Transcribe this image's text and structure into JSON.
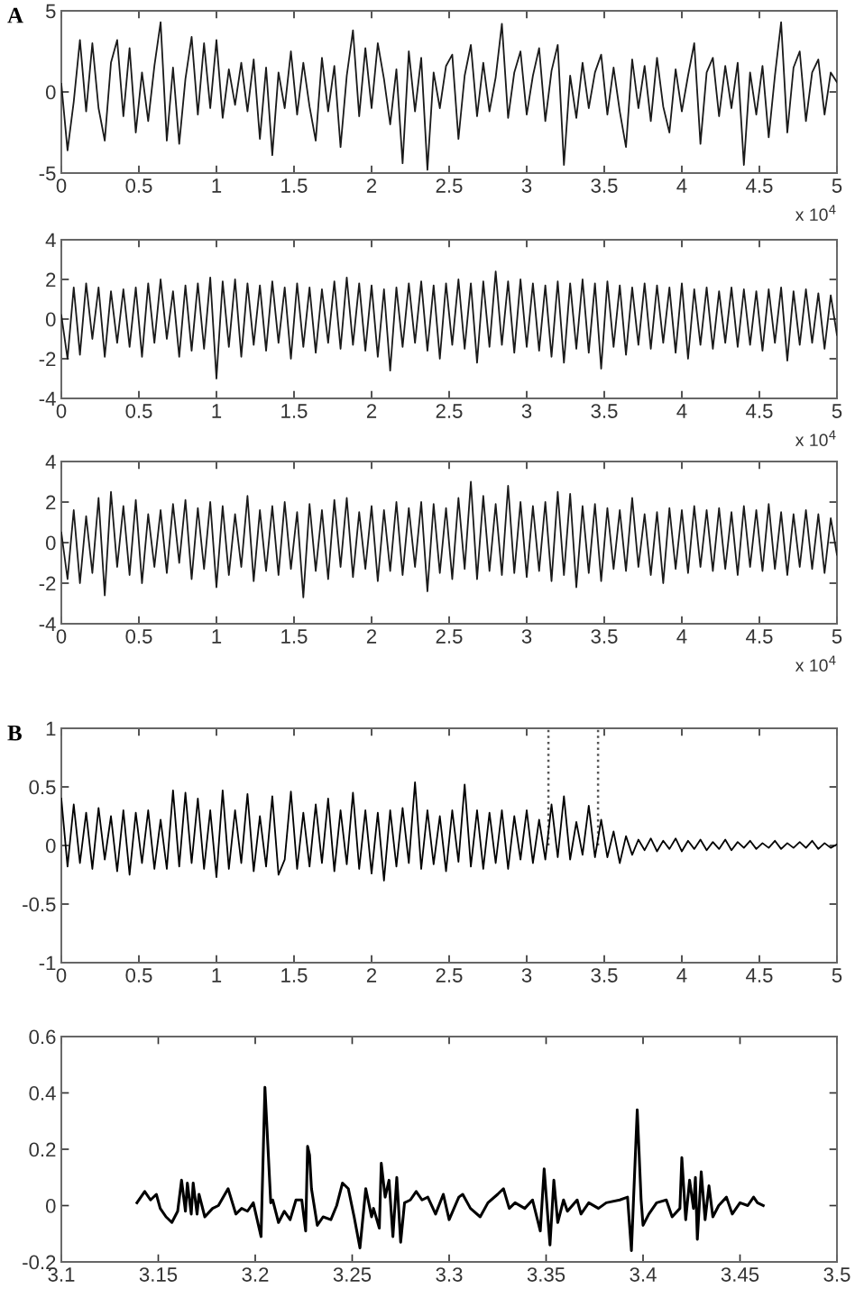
{
  "chart_data": [
    {
      "type": "line",
      "title": "A",
      "xlim": [
        0,
        5
      ],
      "ylim": [
        -5,
        5
      ],
      "xticks": [
        0,
        0.5,
        1,
        1.5,
        2,
        2.5,
        3,
        3.5,
        4,
        4.5,
        5
      ],
      "yticks": [
        -5,
        0,
        5
      ],
      "annotations": [
        "x 10$^{4}$"
      ],
      "x": [
        0,
        0.04,
        0.08,
        0.12,
        0.16,
        0.2,
        0.24,
        0.28,
        0.32,
        0.36,
        0.4,
        0.44,
        0.48,
        0.52,
        0.56,
        0.6,
        0.64,
        0.68,
        0.72,
        0.76,
        0.8,
        0.84,
        0.88,
        0.92,
        0.96,
        1,
        1.04,
        1.08,
        1.12,
        1.16,
        1.2,
        1.24,
        1.28,
        1.32,
        1.36,
        1.4,
        1.44,
        1.48,
        1.52,
        1.56,
        1.6,
        1.64,
        1.68,
        1.72,
        1.76,
        1.8,
        1.84,
        1.88,
        1.92,
        1.96,
        2,
        2.04,
        2.08,
        2.12,
        2.16,
        2.2,
        2.24,
        2.28,
        2.32,
        2.36,
        2.4,
        2.44,
        2.48,
        2.52,
        2.56,
        2.6,
        2.64,
        2.68,
        2.72,
        2.76,
        2.8,
        2.84,
        2.88,
        2.92,
        2.96,
        3,
        3.04,
        3.08,
        3.12,
        3.16,
        3.2,
        3.24,
        3.28,
        3.32,
        3.36,
        3.4,
        3.44,
        3.48,
        3.52,
        3.56,
        3.6,
        3.64,
        3.68,
        3.72,
        3.76,
        3.8,
        3.84,
        3.88,
        3.92,
        3.96,
        4,
        4.04,
        4.08,
        4.12,
        4.16,
        4.2,
        4.24,
        4.28,
        4.32,
        4.36,
        4.4,
        4.44,
        4.48,
        4.52,
        4.56,
        4.6,
        4.64,
        4.68,
        4.72,
        4.76,
        4.8,
        4.84,
        4.88,
        4.92,
        4.96,
        5
      ],
      "series": [
        {
          "color": "#1a1a1a",
          "values": [
            0.5,
            -3.6,
            -0.6,
            3.2,
            -1.2,
            3.0,
            -1.0,
            -3.0,
            1.8,
            3.2,
            -1.5,
            2.7,
            -2.5,
            1.2,
            -1.8,
            1.6,
            4.3,
            -3.0,
            1.5,
            -3.2,
            0.8,
            3.4,
            -1.4,
            3.0,
            -1.0,
            3.2,
            -1.6,
            1.4,
            -0.8,
            1.8,
            -1.2,
            2.0,
            -2.9,
            1.5,
            -3.9,
            1.2,
            -1.0,
            2.5,
            -1.4,
            1.8,
            -0.9,
            -3.0,
            2.1,
            -1.2,
            1.6,
            -3.4,
            1.0,
            3.8,
            -1.5,
            2.7,
            -1.0,
            3.0,
            0.8,
            -2.0,
            1.4,
            -4.4,
            2.5,
            -1.2,
            2.1,
            -4.8,
            1.2,
            -1.0,
            1.6,
            2.3,
            -2.9,
            1.0,
            2.9,
            -1.5,
            1.8,
            -1.2,
            0.9,
            4.2,
            -1.6,
            1.2,
            2.5,
            -1.4,
            1.0,
            2.7,
            -1.8,
            1.3,
            2.9,
            -4.5,
            1.0,
            -1.6,
            1.8,
            -1.0,
            1.2,
            2.3,
            -1.4,
            1.5,
            -1.2,
            -3.4,
            2.0,
            -1.0,
            1.6,
            -1.8,
            2.1,
            -0.9,
            -2.5,
            1.4,
            -1.2,
            1.0,
            3.0,
            -3.2,
            1.2,
            2.1,
            -1.5,
            1.6,
            -1.0,
            1.8,
            -4.5,
            1.2,
            -1.4,
            1.6,
            -2.8,
            1.0,
            4.3,
            -2.5,
            1.5,
            2.5,
            -1.8,
            1.2,
            2.0,
            -1.4,
            1.2,
            0.6
          ]
        }
      ]
    },
    {
      "type": "line",
      "xlim": [
        0,
        5
      ],
      "ylim": [
        -4,
        4
      ],
      "xticks": [
        0,
        0.5,
        1,
        1.5,
        2,
        2.5,
        3,
        3.5,
        4,
        4.5,
        5
      ],
      "yticks": [
        -4,
        -2,
        0,
        2,
        4
      ],
      "annotations": [
        "x 10$^{4}$"
      ],
      "x": [
        0,
        0.04,
        0.08,
        0.12,
        0.16,
        0.2,
        0.24,
        0.28,
        0.32,
        0.36,
        0.4,
        0.44,
        0.48,
        0.52,
        0.56,
        0.6,
        0.64,
        0.68,
        0.72,
        0.76,
        0.8,
        0.84,
        0.88,
        0.92,
        0.96,
        1,
        1.04,
        1.08,
        1.12,
        1.16,
        1.2,
        1.24,
        1.28,
        1.32,
        1.36,
        1.4,
        1.44,
        1.48,
        1.52,
        1.56,
        1.6,
        1.64,
        1.68,
        1.72,
        1.76,
        1.8,
        1.84,
        1.88,
        1.92,
        1.96,
        2,
        2.04,
        2.08,
        2.12,
        2.16,
        2.2,
        2.24,
        2.28,
        2.32,
        2.36,
        2.4,
        2.44,
        2.48,
        2.52,
        2.56,
        2.6,
        2.64,
        2.68,
        2.72,
        2.76,
        2.8,
        2.84,
        2.88,
        2.92,
        2.96,
        3,
        3.04,
        3.08,
        3.12,
        3.16,
        3.2,
        3.24,
        3.28,
        3.32,
        3.36,
        3.4,
        3.44,
        3.48,
        3.52,
        3.56,
        3.6,
        3.64,
        3.68,
        3.72,
        3.76,
        3.8,
        3.84,
        3.88,
        3.92,
        3.96,
        4,
        4.04,
        4.08,
        4.12,
        4.16,
        4.2,
        4.24,
        4.28,
        4.32,
        4.36,
        4.4,
        4.44,
        4.48,
        4.52,
        4.56,
        4.6,
        4.64,
        4.68,
        4.72,
        4.76,
        4.8,
        4.84,
        4.88,
        4.92,
        4.96,
        5
      ],
      "series": [
        {
          "color": "#1a1a1a",
          "values": [
            0.2,
            -2.0,
            1.6,
            -1.8,
            1.8,
            -1.0,
            1.6,
            -1.9,
            1.4,
            -1.2,
            1.5,
            -1.4,
            1.6,
            -1.9,
            1.8,
            -1.2,
            2.0,
            -1.0,
            1.4,
            -1.9,
            1.7,
            -1.6,
            1.8,
            -1.5,
            2.1,
            -3.0,
            1.9,
            -1.4,
            2.0,
            -1.9,
            1.8,
            -1.3,
            1.7,
            -1.6,
            1.9,
            -1.2,
            1.6,
            -2.0,
            1.8,
            -1.4,
            1.6,
            -1.7,
            1.5,
            -1.2,
            1.9,
            -1.5,
            2.1,
            -1.3,
            1.8,
            -1.6,
            1.7,
            -1.9,
            1.5,
            -2.6,
            1.6,
            -1.4,
            1.8,
            -1.2,
            1.9,
            -1.6,
            1.7,
            -2.0,
            1.8,
            -1.3,
            2.0,
            -1.5,
            1.8,
            -2.2,
            1.9,
            -1.4,
            2.4,
            -1.3,
            1.9,
            -1.7,
            2.0,
            -1.4,
            1.8,
            -1.6,
            1.7,
            -1.9,
            1.9,
            -2.2,
            1.8,
            -1.5,
            2.0,
            -1.7,
            1.8,
            -2.5,
            1.9,
            -1.4,
            1.7,
            -1.8,
            1.6,
            -1.3,
            1.8,
            -1.5,
            1.7,
            -1.2,
            1.6,
            -1.7,
            1.8,
            -2.0,
            1.5,
            -1.3,
            1.6,
            -1.5,
            1.4,
            -1.2,
            1.6,
            -1.4,
            1.5,
            -1.3,
            1.4,
            -1.6,
            1.5,
            -1.2,
            1.6,
            -2.1,
            1.4,
            -1.3,
            1.5,
            -1.2,
            1.3,
            -1.5,
            1.2,
            -0.8
          ]
        }
      ]
    },
    {
      "type": "line",
      "xlim": [
        0,
        5
      ],
      "ylim": [
        -4,
        4
      ],
      "xticks": [
        0,
        0.5,
        1,
        1.5,
        2,
        2.5,
        3,
        3.5,
        4,
        4.5,
        5
      ],
      "yticks": [
        -4,
        -2,
        0,
        2,
        4
      ],
      "annotations": [
        "x 10$^{4}$"
      ],
      "x": [
        0,
        0.04,
        0.08,
        0.12,
        0.16,
        0.2,
        0.24,
        0.28,
        0.32,
        0.36,
        0.4,
        0.44,
        0.48,
        0.52,
        0.56,
        0.6,
        0.64,
        0.68,
        0.72,
        0.76,
        0.8,
        0.84,
        0.88,
        0.92,
        0.96,
        1,
        1.04,
        1.08,
        1.12,
        1.16,
        1.2,
        1.24,
        1.28,
        1.32,
        1.36,
        1.4,
        1.44,
        1.48,
        1.52,
        1.56,
        1.6,
        1.64,
        1.68,
        1.72,
        1.76,
        1.8,
        1.84,
        1.88,
        1.92,
        1.96,
        2,
        2.04,
        2.08,
        2.12,
        2.16,
        2.2,
        2.24,
        2.28,
        2.32,
        2.36,
        2.4,
        2.44,
        2.48,
        2.52,
        2.56,
        2.6,
        2.64,
        2.68,
        2.72,
        2.76,
        2.8,
        2.84,
        2.88,
        2.92,
        2.96,
        3,
        3.04,
        3.08,
        3.12,
        3.16,
        3.2,
        3.24,
        3.28,
        3.32,
        3.36,
        3.4,
        3.44,
        3.48,
        3.52,
        3.56,
        3.6,
        3.64,
        3.68,
        3.72,
        3.76,
        3.8,
        3.84,
        3.88,
        3.92,
        3.96,
        4,
        4.04,
        4.08,
        4.12,
        4.16,
        4.2,
        4.24,
        4.28,
        4.32,
        4.36,
        4.4,
        4.44,
        4.48,
        4.52,
        4.56,
        4.6,
        4.64,
        4.68,
        4.72,
        4.76,
        4.8,
        4.84,
        4.88,
        4.92,
        4.96,
        5
      ],
      "series": [
        {
          "color": "#1a1a1a",
          "values": [
            0.5,
            -1.8,
            1.6,
            -2.0,
            1.3,
            -1.5,
            2.2,
            -2.6,
            2.5,
            -1.2,
            1.8,
            -1.6,
            2.1,
            -2.0,
            1.4,
            -1.2,
            1.6,
            -1.5,
            1.9,
            -1.0,
            2.1,
            -1.8,
            1.7,
            -1.3,
            2.0,
            -2.2,
            1.8,
            -1.6,
            1.4,
            -1.2,
            2.3,
            -1.9,
            1.6,
            -1.4,
            1.8,
            -1.6,
            2.0,
            -1.3,
            1.5,
            -2.7,
            1.9,
            -1.4,
            1.6,
            -1.8,
            2.1,
            -1.2,
            2.2,
            -1.7,
            1.5,
            -1.3,
            1.8,
            -1.9,
            1.6,
            -1.4,
            2.0,
            -1.6,
            1.7,
            -1.2,
            2.0,
            -2.4,
            1.9,
            -1.5,
            1.7,
            -1.8,
            2.2,
            -1.3,
            3.0,
            -1.8,
            2.3,
            -1.4,
            1.9,
            -1.6,
            2.8,
            -1.5,
            2.0,
            -1.7,
            1.8,
            -1.4,
            2.0,
            -1.9,
            2.5,
            -1.6,
            2.4,
            -2.2,
            1.8,
            -1.5,
            1.9,
            -1.9,
            1.7,
            -1.3,
            1.6,
            -1.4,
            2.2,
            -1.2,
            1.4,
            -1.6,
            1.5,
            -2.0,
            1.7,
            -1.3,
            1.6,
            -1.5,
            1.8,
            -1.2,
            1.6,
            -1.4,
            1.7,
            -1.3,
            1.5,
            -1.6,
            1.8,
            -1.2,
            1.6,
            -1.4,
            1.9,
            -1.3,
            1.5,
            -1.6,
            1.4,
            -1.2,
            1.6,
            -1.3,
            1.4,
            -1.5,
            1.2,
            -0.6
          ]
        }
      ]
    },
    {
      "type": "line",
      "title": "B",
      "xlim": [
        0,
        5
      ],
      "ylim": [
        -1,
        1
      ],
      "xticks": [
        0,
        0.5,
        1,
        1.5,
        2,
        2.5,
        3,
        3.5,
        4,
        4.5,
        5
      ],
      "yticks": [
        -1,
        -0.5,
        0,
        0.5,
        1
      ],
      "ref_lines": [
        {
          "axis": "x",
          "value": 3.14,
          "color": "#555555",
          "line_style": "dotted"
        },
        {
          "axis": "x",
          "value": 3.46,
          "color": "#555555",
          "line_style": "dotted"
        }
      ],
      "x": [
        0,
        0.04,
        0.08,
        0.12,
        0.16,
        0.2,
        0.24,
        0.28,
        0.32,
        0.36,
        0.4,
        0.44,
        0.48,
        0.52,
        0.56,
        0.6,
        0.64,
        0.68,
        0.72,
        0.76,
        0.8,
        0.84,
        0.88,
        0.92,
        0.96,
        1,
        1.04,
        1.08,
        1.12,
        1.16,
        1.2,
        1.24,
        1.28,
        1.32,
        1.36,
        1.4,
        1.44,
        1.48,
        1.52,
        1.56,
        1.6,
        1.64,
        1.68,
        1.72,
        1.76,
        1.8,
        1.84,
        1.88,
        1.92,
        1.96,
        2,
        2.04,
        2.08,
        2.12,
        2.16,
        2.2,
        2.24,
        2.28,
        2.32,
        2.36,
        2.4,
        2.44,
        2.48,
        2.52,
        2.56,
        2.6,
        2.64,
        2.68,
        2.72,
        2.76,
        2.8,
        2.84,
        2.88,
        2.92,
        2.96,
        3,
        3.04,
        3.08,
        3.12,
        3.16,
        3.2,
        3.24,
        3.28,
        3.32,
        3.36,
        3.4,
        3.44,
        3.48,
        3.52,
        3.56,
        3.6,
        3.64,
        3.68,
        3.72,
        3.76,
        3.8,
        3.84,
        3.88,
        3.92,
        3.96,
        4,
        4.04,
        4.08,
        4.12,
        4.16,
        4.2,
        4.24,
        4.28,
        4.32,
        4.36,
        4.4,
        4.44,
        4.48,
        4.52,
        4.56,
        4.6,
        4.64,
        4.68,
        4.72,
        4.76,
        4.8,
        4.84,
        4.88,
        4.92,
        4.96,
        5
      ],
      "series": [
        {
          "color": "#000000",
          "values": [
            0.4,
            -0.18,
            0.35,
            -0.15,
            0.28,
            -0.2,
            0.32,
            -0.12,
            0.25,
            -0.22,
            0.3,
            -0.25,
            0.28,
            -0.15,
            0.3,
            -0.2,
            0.22,
            -0.2,
            0.47,
            -0.18,
            0.45,
            -0.15,
            0.4,
            -0.2,
            0.3,
            -0.27,
            0.47,
            -0.2,
            0.3,
            -0.15,
            0.44,
            -0.22,
            0.25,
            -0.18,
            0.42,
            -0.25,
            -0.12,
            0.46,
            -0.2,
            0.28,
            -0.18,
            0.35,
            -0.15,
            0.4,
            -0.22,
            0.3,
            -0.16,
            0.45,
            -0.2,
            0.3,
            -0.24,
            0.28,
            -0.3,
            0.3,
            -0.18,
            0.32,
            -0.15,
            0.54,
            -0.2,
            0.3,
            -0.16,
            0.25,
            -0.22,
            0.3,
            -0.14,
            0.52,
            -0.18,
            0.3,
            -0.2,
            0.28,
            -0.15,
            0.3,
            -0.2,
            0.25,
            -0.12,
            0.3,
            -0.15,
            0.22,
            -0.12,
            0.35,
            -0.1,
            0.42,
            -0.12,
            0.2,
            -0.08,
            0.34,
            -0.1,
            0.22,
            -0.1,
            0.12,
            -0.15,
            0.08,
            -0.08,
            0.05,
            -0.04,
            0.06,
            -0.05,
            0.04,
            -0.03,
            0.06,
            -0.05,
            0.04,
            -0.03,
            0.05,
            -0.04,
            0.03,
            -0.03,
            0.05,
            -0.04,
            0.03,
            -0.02,
            0.04,
            -0.03,
            0.02,
            -0.02,
            0.04,
            -0.03,
            0.02,
            -0.02,
            0.03,
            -0.02,
            0.04,
            -0.03,
            0.02,
            -0.02,
            0.01
          ]
        }
      ]
    },
    {
      "type": "line",
      "xlim": [
        3.1,
        3.5
      ],
      "ylim": [
        -0.2,
        0.6
      ],
      "xticks": [
        3.1,
        3.15,
        3.2,
        3.25,
        3.3,
        3.35,
        3.4,
        3.45,
        3.5
      ],
      "yticks": [
        -0.2,
        0,
        0.2,
        0.4,
        0.6
      ],
      "series": [
        {
          "color": "#000000",
          "x": [
            3.139,
            3.143,
            3.146,
            3.149,
            3.151,
            3.154,
            3.157,
            3.16,
            3.162,
            3.164,
            3.165,
            3.167,
            3.168,
            3.17,
            3.171,
            3.174,
            3.178,
            3.181,
            3.186,
            3.19,
            3.193,
            3.196,
            3.199,
            3.203,
            3.205,
            3.208,
            3.209,
            3.212,
            3.215,
            3.218,
            3.221,
            3.224,
            3.226,
            3.227,
            3.228,
            3.229,
            3.232,
            3.235,
            3.239,
            3.242,
            3.245,
            3.248,
            3.251,
            3.254,
            3.257,
            3.26,
            3.261,
            3.264,
            3.265,
            3.267,
            3.269,
            3.271,
            3.273,
            3.275,
            3.277,
            3.28,
            3.283,
            3.286,
            3.289,
            3.293,
            3.297,
            3.3,
            3.305,
            3.307,
            3.311,
            3.316,
            3.32,
            3.325,
            3.328,
            3.331,
            3.334,
            3.339,
            3.343,
            3.347,
            3.349,
            3.352,
            3.354,
            3.356,
            3.359,
            3.361,
            3.366,
            3.368,
            3.372,
            3.377,
            3.381,
            3.388,
            3.392,
            3.394,
            3.397,
            3.399,
            3.4,
            3.403,
            3.407,
            3.412,
            3.415,
            3.419,
            3.42,
            3.422,
            3.424,
            3.426,
            3.427,
            3.428,
            3.43,
            3.432,
            3.434,
            3.436,
            3.439,
            3.443,
            3.446,
            3.45,
            3.454,
            3.457,
            3.459,
            3.462
          ],
          "values": [
            0.01,
            0.05,
            0.02,
            0.04,
            -0.01,
            -0.04,
            -0.06,
            -0.02,
            0.09,
            -0.02,
            0.08,
            -0.03,
            0.08,
            -0.03,
            0.04,
            -0.04,
            -0.01,
            0,
            0.06,
            -0.03,
            -0.01,
            -0.02,
            0.01,
            -0.11,
            0.42,
            0.01,
            0.02,
            -0.06,
            -0.02,
            -0.05,
            0.02,
            0.02,
            -0.09,
            0.21,
            0.18,
            0.06,
            -0.07,
            -0.04,
            -0.05,
            0,
            0.08,
            0.06,
            -0.04,
            -0.15,
            0.06,
            -0.04,
            -0.01,
            -0.08,
            0.15,
            0.03,
            0.09,
            -0.11,
            0.1,
            -0.13,
            0.01,
            0.02,
            0.05,
            0.02,
            0.03,
            -0.03,
            0.04,
            -0.05,
            0.03,
            0.04,
            -0.01,
            -0.04,
            0.01,
            0.04,
            0.06,
            -0.01,
            0.01,
            -0.01,
            0.02,
            -0.09,
            0.13,
            -0.14,
            0.09,
            -0.06,
            0.02,
            -0.02,
            0.02,
            -0.03,
            0.01,
            -0.01,
            0.01,
            0.02,
            0.03,
            -0.16,
            0.34,
            0.02,
            -0.07,
            -0.03,
            0.01,
            0.02,
            -0.04,
            -0.01,
            0.17,
            -0.05,
            0.09,
            -0.01,
            0.1,
            -0.12,
            0.12,
            -0.05,
            0.07,
            -0.04,
            0,
            0.03,
            -0.03,
            0.01,
            0,
            0.03,
            0.01,
            0
          ]
        }
      ]
    }
  ]
}
